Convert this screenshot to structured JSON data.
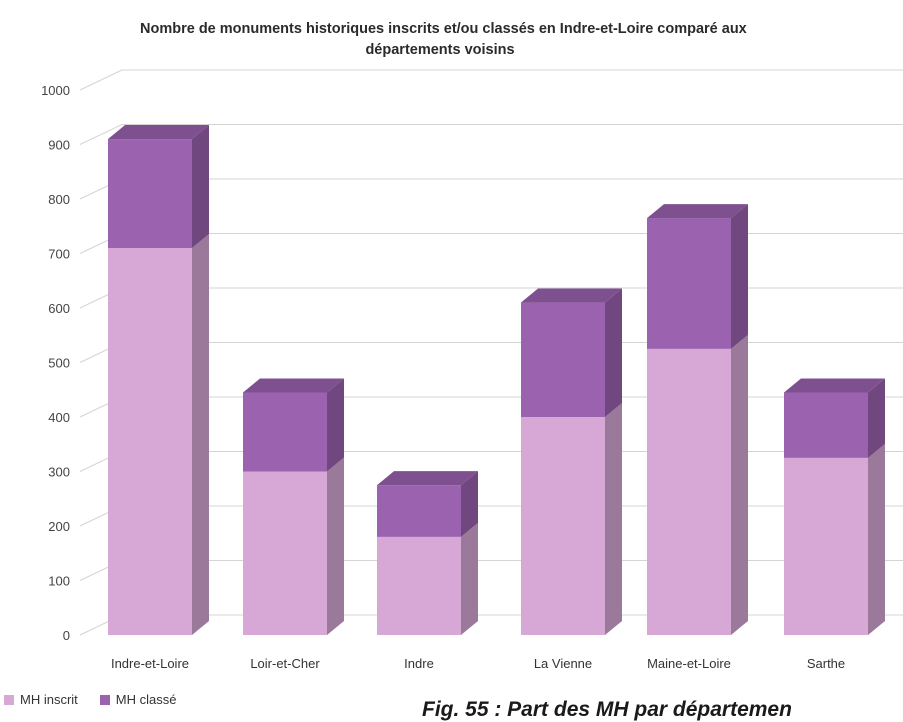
{
  "chart_data": {
    "type": "bar",
    "stacked": true,
    "three_d": true,
    "title": "Nombre de monuments historiques inscrits et/ou classés en Indre-et-Loire comparé aux départements voisins",
    "title_lines": [
      "Nombre de monuments historiques inscrits et/ou classés en Indre-et-Loire comparé aux",
      "départements voisins"
    ],
    "categories": [
      "Indre-et-Loire",
      "Loir-et-Cher",
      "Indre",
      "La Vienne",
      "Maine-et-Loire",
      "Sarthe"
    ],
    "series": [
      {
        "name": "MH inscrit",
        "values": [
          710,
          300,
          180,
          400,
          525,
          325
        ],
        "color": "#d7a8d6"
      },
      {
        "name": "MH classé",
        "values": [
          200,
          145,
          95,
          210,
          240,
          120
        ],
        "color": "#9b62b0"
      }
    ],
    "y_ticks": [
      "0",
      "100",
      "200",
      "300",
      "400",
      "500",
      "600",
      "700",
      "800",
      "900",
      "1000"
    ],
    "ylim": [
      0,
      1000
    ],
    "grid": true,
    "legend_position": "bottom-left"
  },
  "caption": "Fig. 55 : Part des MH par départemen"
}
